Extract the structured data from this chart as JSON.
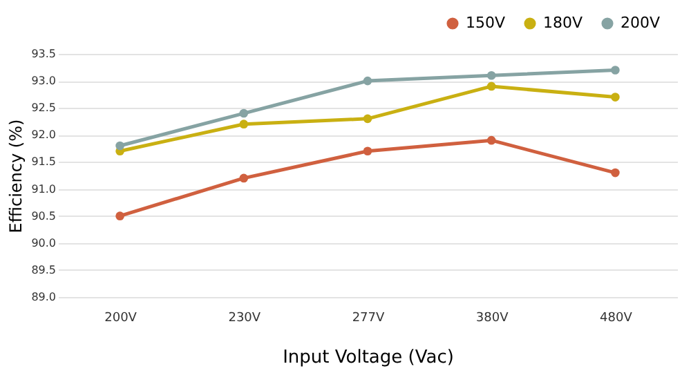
{
  "chart_data": {
    "type": "line",
    "xlabel": "Input Voltage (Vac)",
    "ylabel": "Efficiency (%)",
    "categories": [
      "200V",
      "230V",
      "277V",
      "380V",
      "480V"
    ],
    "series": [
      {
        "name": "150V",
        "color": "#d0603f",
        "values": [
          90.5,
          91.2,
          91.7,
          91.9,
          91.3
        ]
      },
      {
        "name": "180V",
        "color": "#c9b012",
        "values": [
          91.7,
          92.2,
          92.3,
          92.9,
          92.7
        ]
      },
      {
        "name": "200V",
        "color": "#86a3a3",
        "values": [
          91.8,
          92.4,
          93.0,
          93.1,
          93.2
        ]
      }
    ],
    "ylim": [
      89.0,
      93.5
    ],
    "yticks": [
      {
        "value": 89.0,
        "label": "89.0"
      },
      {
        "value": 89.5,
        "label": "89.5"
      },
      {
        "value": 90.0,
        "label": "90.0"
      },
      {
        "value": 90.5,
        "label": "90.5"
      },
      {
        "value": 91.0,
        "label": "91.0"
      },
      {
        "value": 91.5,
        "label": "91.5"
      },
      {
        "value": 92.0,
        "label": "92.0"
      },
      {
        "value": 92.5,
        "label": "92.5"
      },
      {
        "value": 93.0,
        "label": "93.0"
      },
      {
        "value": 93.5,
        "label": "93.5"
      }
    ],
    "grid": "y",
    "legend": "top right",
    "marker": "circle",
    "line_style": "solid"
  }
}
